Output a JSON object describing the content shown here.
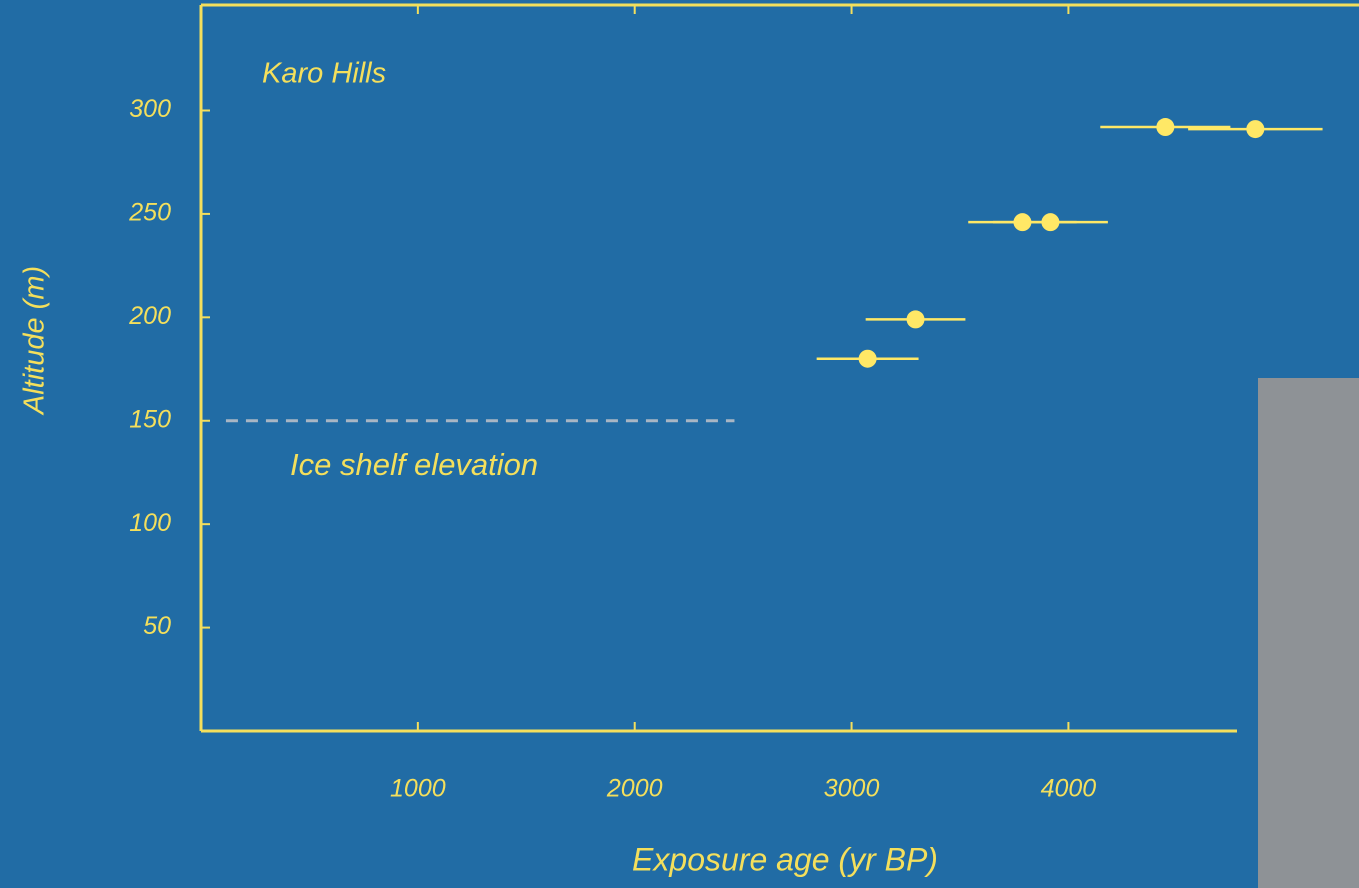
{
  "chart_data": {
    "type": "scatter",
    "title": "Karo Hills",
    "x_label": "Exposure age (yr BP)",
    "y_label": "Altitude (m)",
    "x": [
      3074,
      3295,
      3788,
      3917,
      4447,
      4862
    ],
    "values": [
      180,
      199,
      246,
      246,
      292,
      291
    ],
    "x_errors": [
      235,
      230,
      250,
      265,
      300,
      310
    ],
    "color": "#ffe866",
    "xlim": [
      0,
      5340
    ],
    "ylim": [
      0,
      351
    ],
    "xticks": [
      1000,
      2000,
      3000,
      4000
    ],
    "yticks": [
      50,
      100,
      150,
      200,
      250,
      300
    ],
    "reference_line": {
      "y": 150,
      "x": [
        115,
        2460
      ],
      "label": "Ice shelf elevation",
      "color": "#a9b6c4"
    }
  }
}
